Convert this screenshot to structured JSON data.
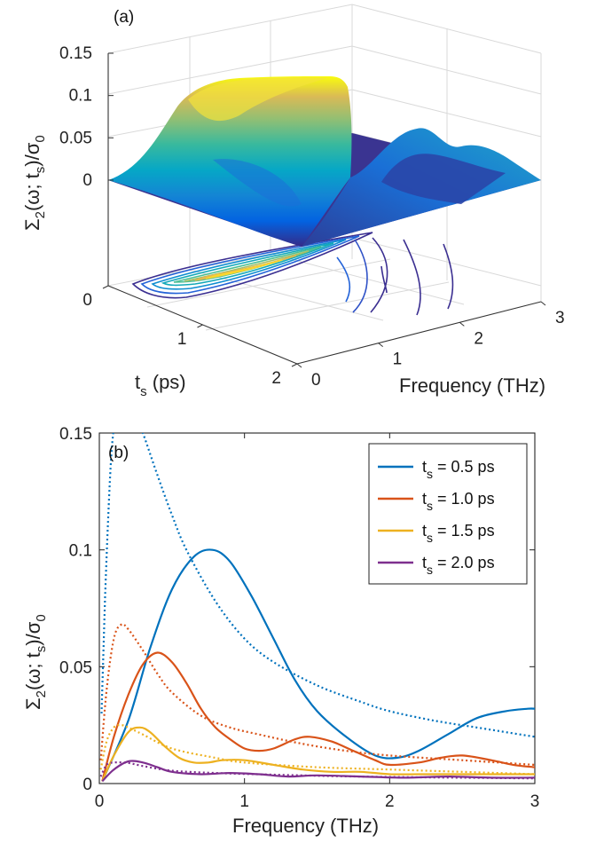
{
  "chart_data": [
    {
      "panel": "(a)",
      "type": "surface",
      "zlabel": {
        "main": "Σ",
        "sub2": "2",
        "mid": "(ω; t",
        "subs": "s",
        "end": ")/σ",
        "sub0": "0"
      },
      "ylabel": {
        "main": "t",
        "sub": "s",
        "rest": " (ps)"
      },
      "xlabel": "Frequency (THz)",
      "z_ticks": [
        "0",
        "0.05",
        "0.1",
        "0.15"
      ],
      "ts_ticks": [
        "0",
        "1",
        "2"
      ],
      "freq_ticks": [
        "0",
        "1",
        "2",
        "3"
      ],
      "zlim": [
        0,
        0.15
      ],
      "ts_range": [
        0,
        2
      ],
      "freq_range": [
        0,
        3
      ],
      "colormap": [
        "#352a87",
        "#0363e1",
        "#1485d4",
        "#06a7c6",
        "#38b99e",
        "#92bf73",
        "#d9ba56",
        "#fcce2e",
        "#f9fb0e"
      ],
      "contour_projection": true
    },
    {
      "panel": "(b)",
      "type": "line",
      "xlabel": "Frequency (THz)",
      "ylabel": {
        "main": "Σ",
        "sub2": "2",
        "mid": "(ω; t",
        "subs": "s",
        "end": ")/σ",
        "sub0": "0"
      },
      "xlim": [
        0,
        3
      ],
      "ylim": [
        0,
        0.15
      ],
      "x_ticks": [
        "0",
        "1",
        "2",
        "3"
      ],
      "y_ticks": [
        "0",
        "0.05",
        "0.1",
        "0.15"
      ],
      "legend_position": "top-right",
      "series": [
        {
          "name": "t_s = 0.5 ps",
          "legend": {
            "t": "t",
            "sub": "s",
            "rest": " = 0.5 ps"
          },
          "color": "#0072bd",
          "solid_x": [
            0.02,
            0.2,
            0.35,
            0.5,
            0.65,
            0.78,
            0.9,
            1.05,
            1.2,
            1.35,
            1.5,
            1.7,
            1.9,
            2.05,
            2.2,
            2.4,
            2.6,
            2.8,
            2.95,
            3.0
          ],
          "solid_y": [
            0.001,
            0.027,
            0.058,
            0.083,
            0.097,
            0.1,
            0.095,
            0.08,
            0.062,
            0.044,
            0.031,
            0.02,
            0.012,
            0.011,
            0.014,
            0.021,
            0.028,
            0.031,
            0.032,
            0.032
          ],
          "dotted_x": [
            0.015,
            0.025,
            0.04,
            0.06,
            0.08,
            0.1,
            0.13,
            0.16,
            0.2,
            0.25,
            0.3,
            0.4,
            0.5,
            0.6,
            0.8,
            1.0,
            1.2,
            1.5,
            1.8,
            2.0,
            2.3,
            2.6,
            2.8,
            3.0
          ],
          "dotted_y": [
            0.03,
            0.05,
            0.08,
            0.112,
            0.138,
            0.152,
            0.16,
            0.163,
            0.162,
            0.157,
            0.15,
            0.132,
            0.115,
            0.1,
            0.078,
            0.062,
            0.052,
            0.042,
            0.035,
            0.031,
            0.027,
            0.024,
            0.022,
            0.02
          ]
        },
        {
          "name": "t_s = 1.0 ps",
          "legend": {
            "t": "t",
            "sub": "s",
            "rest": " = 1.0 ps"
          },
          "color": "#d95319",
          "solid_x": [
            0.02,
            0.1,
            0.2,
            0.3,
            0.4,
            0.5,
            0.6,
            0.7,
            0.8,
            0.9,
            1.0,
            1.1,
            1.2,
            1.35,
            1.45,
            1.6,
            1.75,
            1.9,
            2.0,
            2.2,
            2.35,
            2.5,
            2.7,
            2.85,
            3.0
          ],
          "solid_y": [
            0.001,
            0.02,
            0.038,
            0.051,
            0.056,
            0.052,
            0.043,
            0.032,
            0.024,
            0.019,
            0.015,
            0.014,
            0.015,
            0.019,
            0.02,
            0.018,
            0.014,
            0.01,
            0.008,
            0.009,
            0.011,
            0.012,
            0.01,
            0.008,
            0.007
          ],
          "dotted_x": [
            0.01,
            0.05,
            0.1,
            0.15,
            0.2,
            0.3,
            0.4,
            0.5,
            0.7,
            0.9,
            1.1,
            1.4,
            1.7,
            2.0,
            2.5,
            3.0
          ],
          "dotted_y": [
            0.01,
            0.04,
            0.062,
            0.068,
            0.066,
            0.057,
            0.047,
            0.039,
            0.029,
            0.024,
            0.021,
            0.017,
            0.014,
            0.012,
            0.01,
            0.008
          ]
        },
        {
          "name": "t_s = 1.5 ps",
          "legend": {
            "t": "t",
            "sub": "s",
            "rest": " = 1.5 ps"
          },
          "color": "#edb120",
          "solid_x": [
            0.02,
            0.1,
            0.2,
            0.28,
            0.35,
            0.45,
            0.55,
            0.65,
            0.75,
            0.85,
            1.0,
            1.2,
            1.4,
            1.6,
            1.8,
            2.0,
            2.2,
            2.4,
            2.6,
            2.8,
            3.0
          ],
          "solid_y": [
            0.001,
            0.012,
            0.022,
            0.024,
            0.022,
            0.016,
            0.011,
            0.009,
            0.009,
            0.01,
            0.01,
            0.008,
            0.006,
            0.005,
            0.005,
            0.004,
            0.004,
            0.004,
            0.004,
            0.004,
            0.004
          ],
          "dotted_x": [
            0.01,
            0.05,
            0.1,
            0.15,
            0.2,
            0.3,
            0.5,
            0.8,
            1.0,
            1.5,
            2.0,
            2.5,
            3.0
          ],
          "dotted_y": [
            0.006,
            0.018,
            0.024,
            0.025,
            0.024,
            0.021,
            0.015,
            0.011,
            0.009,
            0.007,
            0.006,
            0.005,
            0.004
          ]
        },
        {
          "name": "t_s = 2.0 ps",
          "legend": {
            "t": "t",
            "sub": "s",
            "rest": " = 2.0 ps"
          },
          "color": "#7e2f8e",
          "solid_x": [
            0.02,
            0.1,
            0.2,
            0.3,
            0.4,
            0.5,
            0.7,
            0.9,
            1.1,
            1.3,
            1.5,
            1.8,
            2.1,
            2.4,
            2.7,
            3.0
          ],
          "solid_y": [
            0.001,
            0.006,
            0.0095,
            0.009,
            0.007,
            0.005,
            0.004,
            0.0045,
            0.004,
            0.003,
            0.0035,
            0.003,
            0.0025,
            0.003,
            0.0025,
            0.0025
          ],
          "dotted_x": [
            0.01,
            0.05,
            0.1,
            0.2,
            0.3,
            0.5,
            0.8,
            1.2,
            1.6,
            2.0,
            2.5,
            3.0
          ],
          "dotted_y": [
            0.003,
            0.008,
            0.009,
            0.0088,
            0.0075,
            0.0055,
            0.0045,
            0.0038,
            0.0032,
            0.0028,
            0.0025,
            0.0022
          ]
        }
      ]
    }
  ]
}
